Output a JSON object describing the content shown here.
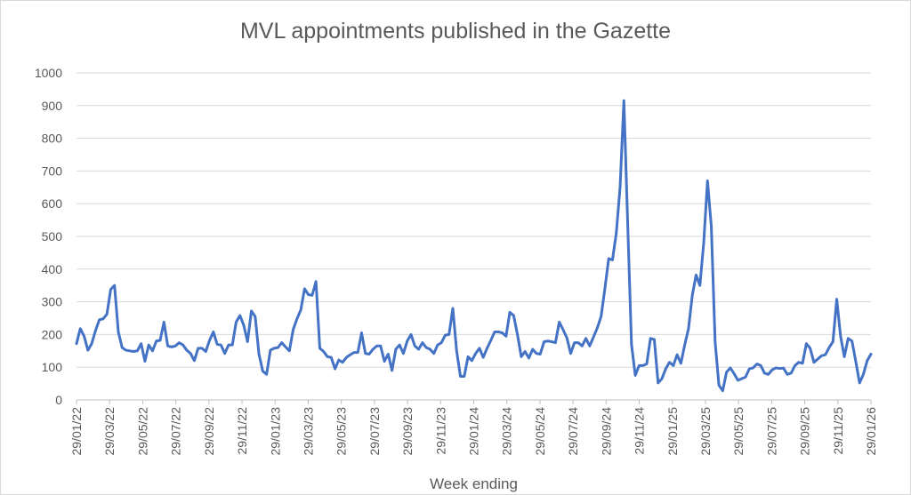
{
  "chart_data": {
    "type": "line",
    "title": "MVL appointments published in the Gazette",
    "xlabel": "Week ending",
    "ylabel": "",
    "ylim": [
      0,
      1000
    ],
    "y_ticks": [
      0,
      100,
      200,
      300,
      400,
      500,
      600,
      700,
      800,
      900,
      1000
    ],
    "x_tick_labels": [
      "29/01/22",
      "29/03/22",
      "29/05/22",
      "29/07/22",
      "29/09/22",
      "29/11/22",
      "29/01/23",
      "29/03/23",
      "29/05/23",
      "29/07/23",
      "29/09/23",
      "29/11/23",
      "29/01/24",
      "29/03/24",
      "29/05/24",
      "29/07/24",
      "29/09/24",
      "29/11/24",
      "29/01/25",
      "29/03/25",
      "29/05/25",
      "29/07/25",
      "29/09/25",
      "29/11/25",
      "29/01/26"
    ],
    "grid": true,
    "legend": "none",
    "line_color": "#4472C4",
    "series": [
      {
        "values": [
          172,
          218,
          195,
          152,
          172,
          212,
          245,
          248,
          262,
          338,
          350,
          208,
          160,
          152,
          150,
          148,
          150,
          172,
          118,
          168,
          150,
          180,
          182,
          238,
          165,
          162,
          165,
          175,
          168,
          152,
          142,
          120,
          158,
          158,
          148,
          182,
          208,
          170,
          168,
          142,
          168,
          168,
          238,
          258,
          228,
          178,
          272,
          255,
          140,
          88,
          78,
          152,
          158,
          160,
          175,
          162,
          150,
          215,
          248,
          275,
          340,
          322,
          320,
          362,
          158,
          148,
          132,
          130,
          95,
          122,
          115,
          130,
          138,
          145,
          145,
          205,
          142,
          140,
          155,
          165,
          165,
          118,
          140,
          90,
          155,
          168,
          142,
          180,
          200,
          165,
          155,
          175,
          160,
          155,
          142,
          168,
          175,
          198,
          200,
          280,
          150,
          72,
          72,
          132,
          120,
          142,
          158,
          130,
          158,
          182,
          208,
          208,
          205,
          195,
          268,
          258,
          200,
          132,
          148,
          128,
          155,
          142,
          140,
          178,
          180,
          178,
          175,
          238,
          215,
          190,
          142,
          175,
          175,
          165,
          188,
          165,
          192,
          220,
          255,
          340,
          432,
          428,
          510,
          650,
          915,
          540,
          170,
          75,
          105,
          105,
          110,
          188,
          185,
          52,
          65,
          95,
          115,
          105,
          138,
          112,
          168,
          218,
          320,
          382,
          350,
          480,
          670,
          530,
          178,
          45,
          28,
          85,
          98,
          80,
          60,
          65,
          70,
          95,
          98,
          110,
          105,
          82,
          78,
          92,
          98,
          96,
          97,
          78,
          82,
          105,
          115,
          112,
          172,
          158,
          115,
          125,
          135,
          138,
          160,
          178,
          308,
          195,
          132,
          188,
          180,
          118,
          52,
          78,
          120,
          140
        ]
      }
    ]
  }
}
